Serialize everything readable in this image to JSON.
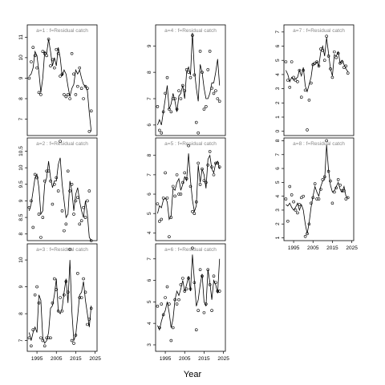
{
  "figure": {
    "xlabel": "Year",
    "colors": {
      "line": "#000000",
      "point": "#000000",
      "title": "#888888",
      "frame": "#000000"
    }
  },
  "chart_data": [
    {
      "type": "line",
      "title": "a=1 : f=Residual catch",
      "x_start": 1991,
      "x_ticks": [
        1995,
        2005,
        2015,
        2025
      ],
      "show_x_ticks": false,
      "ylim": [
        6.2,
        11.6
      ],
      "y_ticks": [
        7,
        8,
        9,
        10,
        11
      ],
      "line": [
        9.1,
        9.2,
        9.5,
        10.3,
        10.1,
        9.3,
        8.3,
        9.0,
        10.3,
        10.2,
        10.9,
        10.3,
        9.6,
        10.0,
        9.6,
        10.5,
        10.0,
        9.1,
        9.4,
        9.2,
        8.6,
        8.1,
        8.5,
        8.7,
        9.4,
        9.2,
        9.4,
        9.0,
        8.7,
        8.6,
        8.4,
        7.3,
        6.4
      ],
      "points": [
        9.0,
        9.8,
        10.5,
        10.1,
        9.5,
        8.3,
        8.2,
        10.3,
        10.2,
        10.1,
        10.9,
        9.6,
        9.9,
        9.5,
        10.4,
        10.2,
        9.1,
        9.2,
        8.2,
        8.1,
        8.2,
        8.0,
        10.2,
        9.2,
        8.2,
        8.6,
        9.5,
        8.5,
        8.0,
        8.6,
        8.5,
        6.4,
        7.4
      ]
    },
    {
      "type": "line",
      "title": "a=2 : f=Residual catch",
      "x_start": 1991,
      "x_ticks": [
        1995,
        2005,
        2015,
        2025
      ],
      "show_x_ticks": false,
      "ylim": [
        7.8,
        10.9
      ],
      "y_ticks": [
        8.0,
        8.5,
        9.0,
        9.5,
        10.0,
        10.5
      ],
      "line": [
        8.7,
        8.9,
        9.3,
        9.7,
        9.8,
        9.4,
        8.6,
        8.7,
        9.5,
        9.7,
        10.2,
        9.7,
        9.4,
        9.6,
        9.6,
        10.1,
        10.3,
        9.5,
        9.0,
        8.5,
        8.6,
        9.6,
        9.3,
        8.7,
        9.2,
        9.4,
        9.0,
        8.7,
        8.5,
        9.0,
        8.6,
        7.9,
        7.8
      ],
      "points": [
        8.8,
        9.0,
        8.2,
        9.8,
        9.7,
        8.6,
        7.9,
        8.5,
        9.6,
        9.9,
        9.9,
        9.6,
        8.9,
        9.5,
        9.7,
        9.3,
        10.8,
        8.7,
        8.1,
        8.3,
        9.9,
        9.3,
        9.5,
        8.6,
        9.0,
        9.1,
        8.3,
        8.4,
        8.8,
        8.5,
        9.0,
        9.3,
        7.8
      ]
    },
    {
      "type": "line",
      "title": "a=3 : f=Residual catch",
      "x_start": 1991,
      "x_ticks": [
        1995,
        2005,
        2015,
        2025
      ],
      "show_x_ticks": true,
      "ylim": [
        6.6,
        10.6
      ],
      "y_ticks": [
        7,
        8,
        9,
        10
      ],
      "line": [
        7.3,
        7.0,
        7.3,
        7.5,
        7.3,
        8.7,
        8.5,
        7.1,
        6.9,
        7.0,
        7.3,
        8.2,
        8.3,
        8.7,
        9.3,
        8.1,
        8.0,
        8.2,
        8.8,
        9.3,
        8.4,
        10.0,
        8.1,
        7.0,
        7.2,
        7.9,
        8.7,
        8.8,
        9.2,
        8.5,
        8.0,
        7.5,
        8.3
      ],
      "points": [
        7.1,
        6.8,
        7.4,
        8.7,
        9.0,
        8.4,
        7.1,
        7.0,
        6.8,
        7.1,
        7.1,
        7.1,
        8.4,
        9.3,
        8.9,
        8.1,
        8.6,
        8.1,
        8.7,
        9.2,
        8.8,
        10.4,
        7.0,
        6.9,
        7.2,
        9.5,
        8.6,
        8.6,
        9.3,
        8.8,
        7.6,
        7.8,
        8.2
      ]
    },
    {
      "type": "line",
      "title": "a=4 : f=Residual catch",
      "x_start": 1991,
      "x_ticks": [
        1995,
        2005,
        2015,
        2025
      ],
      "show_x_ticks": false,
      "ylim": [
        5.6,
        9.8
      ],
      "y_ticks": [
        6,
        7,
        8,
        9
      ],
      "line": [
        6.0,
        6.2,
        6.0,
        6.5,
        7.0,
        7.5,
        6.6,
        6.8,
        7.2,
        6.9,
        6.5,
        7.1,
        7.2,
        7.5,
        7.0,
        8.0,
        8.2,
        7.9,
        9.5,
        8.1,
        7.4,
        6.9,
        8.3,
        8.0,
        7.4,
        7.0,
        7.0,
        7.2,
        7.6,
        7.6,
        8.0,
        8.5,
        7.5
      ],
      "points": [
        6.7,
        5.8,
        5.7,
        6.5,
        7.2,
        7.8,
        6.6,
        6.5,
        7.0,
        7.0,
        6.6,
        7.3,
        7.0,
        7.5,
        7.3,
        8.1,
        8.0,
        7.8,
        9.4,
        7.9,
        6.1,
        5.7,
        8.8,
        8.0,
        6.6,
        6.7,
        8.1,
        8.8,
        7.4,
        7.2,
        7.3,
        7.0,
        6.9
      ]
    },
    {
      "type": "line",
      "title": "a=5 : f=Residual catch",
      "x_start": 1991,
      "x_ticks": [
        1995,
        2005,
        2015,
        2025
      ],
      "show_x_ticks": false,
      "ylim": [
        3.6,
        8.9
      ],
      "y_ticks": [
        4,
        5,
        6,
        7,
        8
      ],
      "line": [
        5.0,
        5.4,
        5.3,
        5.7,
        5.8,
        5.6,
        4.7,
        4.9,
        6.3,
        6.2,
        6.6,
        6.8,
        6.2,
        6.5,
        6.9,
        6.7,
        8.1,
        6.7,
        5.7,
        5.1,
        5.4,
        7.5,
        6.6,
        7.3,
        7.0,
        6.3,
        7.8,
        8.0,
        7.3,
        7.1,
        7.6,
        7.7,
        7.3
      ],
      "points": [
        5.5,
        4.6,
        4.7,
        5.8,
        7.1,
        5.8,
        3.8,
        4.8,
        6.4,
        5.9,
        7.0,
        6.0,
        6.0,
        6.6,
        7.1,
        6.8,
        8.5,
        6.4,
        5.1,
        5.0,
        5.6,
        7.6,
        6.5,
        7.3,
        6.7,
        6.6,
        7.5,
        8.2,
        7.4,
        7.0,
        7.6,
        7.6,
        7.4
      ]
    },
    {
      "type": "line",
      "title": "a=6 : f=Residual catch",
      "x_start": 1991,
      "x_ticks": [
        1995,
        2005,
        2015,
        2025
      ],
      "show_x_ticks": true,
      "ylim": [
        2.7,
        7.7
      ],
      "y_ticks": [
        3,
        4,
        5,
        6,
        7
      ],
      "line": [
        3.9,
        3.7,
        4.1,
        4.4,
        4.6,
        5.0,
        4.5,
        3.8,
        4.2,
        5.1,
        5.5,
        5.3,
        5.6,
        6.0,
        5.5,
        5.8,
        6.2,
        5.5,
        7.2,
        6.0,
        4.8,
        5.1,
        5.8,
        6.3,
        5.0,
        4.8,
        6.5,
        5.9,
        5.1,
        6.0,
        5.8,
        5.4,
        7.0
      ],
      "points": [
        4.8,
        3.8,
        4.9,
        4.4,
        5.2,
        5.7,
        4.9,
        3.2,
        3.8,
        5.1,
        4.9,
        5.1,
        5.8,
        6.1,
        5.5,
        5.6,
        6.1,
        5.6,
        7.5,
        5.9,
        3.7,
        4.6,
        6.5,
        6.2,
        4.5,
        4.9,
        6.5,
        5.8,
        4.6,
        6.2,
        5.9,
        5.5,
        5.5
      ]
    },
    {
      "type": "line",
      "title": "a=7 : f=Residual catch",
      "x_start": 1991,
      "x_ticks": [
        1995,
        2005,
        2015,
        2025
      ],
      "show_x_ticks": false,
      "ylim": [
        -0.3,
        7.5
      ],
      "y_ticks": [
        0,
        1,
        2,
        3,
        4,
        5,
        6,
        7
      ],
      "line": [
        4.3,
        4.0,
        3.5,
        3.8,
        3.6,
        3.7,
        3.8,
        4.3,
        3.9,
        4.5,
        3.2,
        2.8,
        3.3,
        3.8,
        4.8,
        4.7,
        4.9,
        4.6,
        5.6,
        6.0,
        5.3,
        6.6,
        5.5,
        4.4,
        3.9,
        5.4,
        5.3,
        5.6,
        4.8,
        5.0,
        4.7,
        4.4,
        4.2
      ],
      "points": [
        4.9,
        3.6,
        3.1,
        4.9,
        3.8,
        3.6,
        3.5,
        4.3,
        2.4,
        4.3,
        2.9,
        0.1,
        2.2,
        3.4,
        4.7,
        4.8,
        4.9,
        4.6,
        5.8,
        5.7,
        5.0,
        6.7,
        5.3,
        4.4,
        3.8,
        5.6,
        5.2,
        5.5,
        4.8,
        4.9,
        4.5,
        4.6,
        4.1
      ]
    },
    {
      "type": "line",
      "title": "a=8 : f=Residual catch",
      "x_start": 1991,
      "x_ticks": [
        1995,
        2005,
        2015,
        2025
      ],
      "show_x_ticks": true,
      "ylim": [
        0.8,
        8.2
      ],
      "y_ticks": [
        1,
        2,
        3,
        4,
        5,
        6,
        7,
        8
      ],
      "line": [
        3.4,
        3.3,
        3.5,
        3.2,
        3.0,
        3.2,
        3.5,
        3.0,
        3.4,
        3.0,
        2.0,
        1.3,
        2.1,
        3.2,
        4.0,
        4.7,
        4.3,
        4.0,
        4.7,
        5.1,
        5.2,
        7.7,
        5.9,
        4.8,
        4.3,
        4.4,
        4.7,
        5.0,
        4.5,
        4.3,
        4.7,
        4.0,
        3.9
      ],
      "points": [
        3.8,
        2.2,
        4.7,
        4.1,
        3.6,
        3.0,
        2.8,
        3.4,
        3.9,
        4.0,
        1.1,
        1.3,
        2.0,
        3.5,
        3.9,
        4.9,
        3.8,
        3.8,
        4.5,
        5.2,
        5.4,
        8.0,
        5.8,
        5.1,
        3.5,
        4.3,
        4.6,
        5.2,
        4.8,
        4.4,
        4.4,
        3.8,
        3.9
      ]
    }
  ]
}
